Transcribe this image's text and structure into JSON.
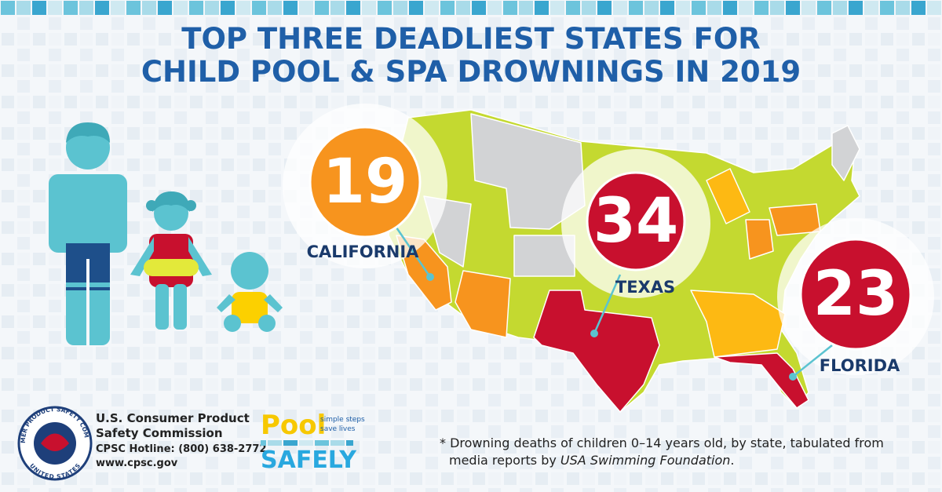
{
  "title": [
    "TOP THREE DEADLIEST STATES FOR",
    "CHILD POOL & SPA DROWNINGS IN 2019"
  ],
  "callouts": [
    {
      "value": 19,
      "label": "CALIFORNIA",
      "color": "#f7941e"
    },
    {
      "value": 34,
      "label": "TEXAS",
      "color": "#c8102e"
    },
    {
      "value": 23,
      "label": "FLORIDA",
      "color": "#c8102e"
    }
  ],
  "agency": {
    "name": [
      "U.S. Consumer Product",
      "Safety Commission"
    ],
    "hotline": "CPSC  Hotline: (800) 638-2772",
    "website": "www.cpsc.gov",
    "seal": [
      "CONSUMER PRODUCT SAFETY COMMISSION",
      "UNITED STATES"
    ]
  },
  "logo": {
    "top": "Pool",
    "bottom": "SAFELY",
    "tagline": [
      "simple steps",
      "save lives"
    ]
  },
  "footnote": {
    "line1": "* Drowning deaths of children 0–14 years old, by state, tabulated from",
    "line2": [
      "media reports by ",
      "USA Swimming Foundation",
      "."
    ]
  }
}
